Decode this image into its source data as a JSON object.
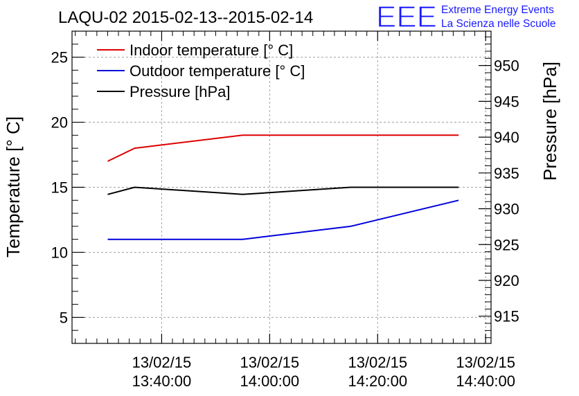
{
  "chart_data": {
    "type": "line",
    "title": "LAQU-02 2015-02-13--2015-02-14",
    "ylabel_left": "Temperature [° C]",
    "ylabel_right": "Pressure [hPa]",
    "xlabel": "",
    "logo": {
      "mark": "EEE",
      "line1": "Extreme Energy Events",
      "line2": "La Scienza nelle Scuole",
      "color": "#1a1aff"
    },
    "grid": true,
    "legend_position": "top-left",
    "x_ticks": [
      {
        "date": "13/02/15",
        "time": "13:40:00"
      },
      {
        "date": "13/02/15",
        "time": "14:00:00"
      },
      {
        "date": "13/02/15",
        "time": "14:20:00"
      },
      {
        "date": "13/02/15",
        "time": "14:40:00"
      }
    ],
    "x_tick_minutes": [
      40,
      60,
      80,
      100
    ],
    "xlim_minutes": [
      23.4,
      101.0
    ],
    "ylim_left": [
      3,
      27
    ],
    "yticks_left": [
      "5",
      "10",
      "15",
      "20",
      "25"
    ],
    "ylim_right": [
      911.2,
      954.8
    ],
    "yticks_right": [
      "915",
      "920",
      "925",
      "930",
      "935",
      "940",
      "945",
      "950"
    ],
    "series": [
      {
        "name": "Indoor temperature [° C]",
        "axis": "left",
        "color": "#dd0000",
        "points": [
          [
            30,
            17
          ],
          [
            35,
            18
          ],
          [
            55,
            19
          ],
          [
            75,
            19
          ],
          [
            95,
            19
          ]
        ]
      },
      {
        "name": "Outdoor temperature [° C]",
        "axis": "left",
        "color": "#0000dd",
        "points": [
          [
            30,
            11
          ],
          [
            35,
            11
          ],
          [
            55,
            11
          ],
          [
            75,
            12
          ],
          [
            95,
            14
          ]
        ]
      },
      {
        "name": "Pressure [hPa]",
        "axis": "right",
        "color": "#000000",
        "points": [
          [
            30,
            932
          ],
          [
            35,
            933
          ],
          [
            55,
            932
          ],
          [
            75,
            933
          ],
          [
            95,
            933
          ]
        ]
      }
    ]
  }
}
